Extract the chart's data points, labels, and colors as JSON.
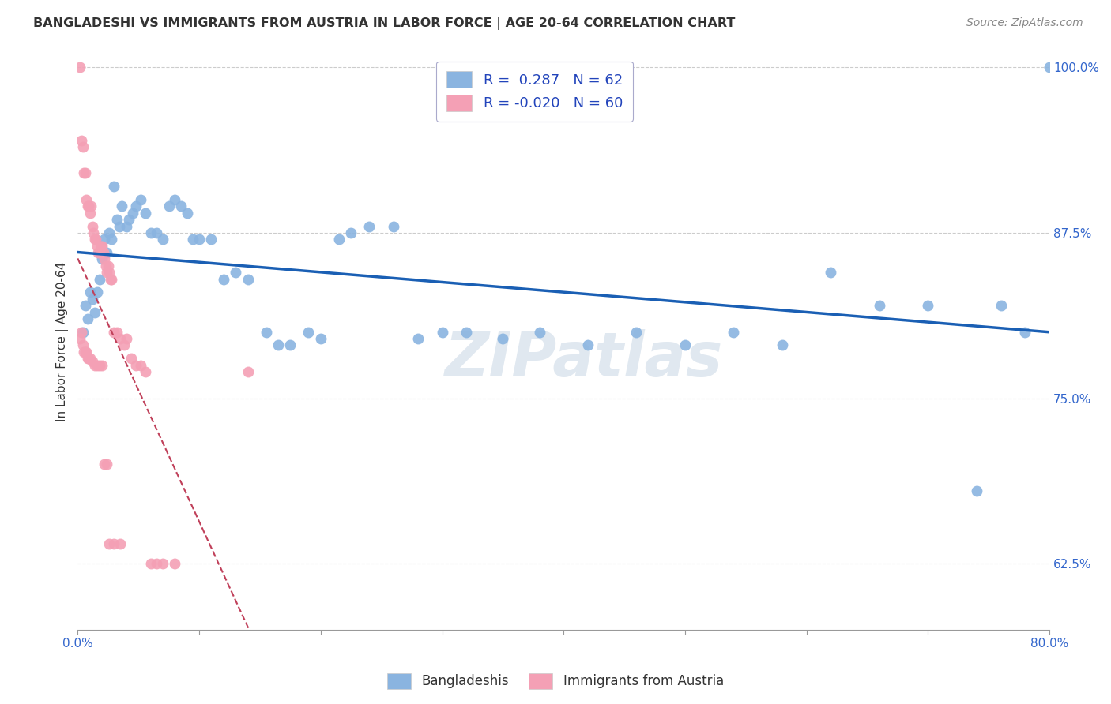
{
  "title": "BANGLADESHI VS IMMIGRANTS FROM AUSTRIA IN LABOR FORCE | AGE 20-64 CORRELATION CHART",
  "source": "Source: ZipAtlas.com",
  "ylabel": "In Labor Force | Age 20-64",
  "x_min": 0.0,
  "x_max": 0.8,
  "y_min": 0.575,
  "y_max": 1.01,
  "x_ticks": [
    0.0,
    0.1,
    0.2,
    0.3,
    0.4,
    0.5,
    0.6,
    0.7,
    0.8
  ],
  "x_ticklabels": [
    "0.0%",
    "",
    "",
    "",
    "",
    "",
    "",
    "",
    "80.0%"
  ],
  "y_ticks": [
    0.625,
    0.75,
    0.875,
    1.0
  ],
  "y_ticklabels": [
    "62.5%",
    "75.0%",
    "87.5%",
    "100.0%"
  ],
  "blue_R": 0.287,
  "blue_N": 62,
  "pink_R": -0.02,
  "pink_N": 60,
  "blue_color": "#8ab4e0",
  "pink_color": "#f4a0b5",
  "blue_line_color": "#1a5fb4",
  "pink_line_color": "#c0405a",
  "grid_color": "#cccccc",
  "legend_label_blue": "Bangladeshis",
  "legend_label_pink": "Immigrants from Austria",
  "watermark": "ZIPatlas",
  "blue_x": [
    0.004,
    0.006,
    0.008,
    0.01,
    0.012,
    0.014,
    0.016,
    0.018,
    0.02,
    0.022,
    0.024,
    0.026,
    0.028,
    0.03,
    0.032,
    0.034,
    0.036,
    0.04,
    0.042,
    0.045,
    0.048,
    0.052,
    0.056,
    0.06,
    0.065,
    0.07,
    0.075,
    0.08,
    0.085,
    0.09,
    0.095,
    0.1,
    0.11,
    0.12,
    0.13,
    0.14,
    0.155,
    0.165,
    0.175,
    0.19,
    0.2,
    0.215,
    0.225,
    0.24,
    0.26,
    0.28,
    0.3,
    0.32,
    0.35,
    0.38,
    0.42,
    0.46,
    0.5,
    0.54,
    0.58,
    0.62,
    0.66,
    0.7,
    0.74,
    0.76,
    0.78,
    0.8
  ],
  "blue_y": [
    0.8,
    0.82,
    0.81,
    0.83,
    0.825,
    0.815,
    0.83,
    0.84,
    0.855,
    0.87,
    0.86,
    0.875,
    0.87,
    0.91,
    0.885,
    0.88,
    0.895,
    0.88,
    0.885,
    0.89,
    0.895,
    0.9,
    0.89,
    0.875,
    0.875,
    0.87,
    0.895,
    0.9,
    0.895,
    0.89,
    0.87,
    0.87,
    0.87,
    0.84,
    0.845,
    0.84,
    0.8,
    0.79,
    0.79,
    0.8,
    0.795,
    0.87,
    0.875,
    0.88,
    0.88,
    0.795,
    0.8,
    0.8,
    0.795,
    0.8,
    0.79,
    0.8,
    0.79,
    0.8,
    0.79,
    0.845,
    0.82,
    0.82,
    0.68,
    0.82,
    0.8,
    1.0
  ],
  "pink_x": [
    0.002,
    0.003,
    0.004,
    0.005,
    0.006,
    0.007,
    0.008,
    0.009,
    0.01,
    0.011,
    0.012,
    0.013,
    0.014,
    0.015,
    0.016,
    0.017,
    0.018,
    0.019,
    0.02,
    0.021,
    0.022,
    0.023,
    0.024,
    0.025,
    0.026,
    0.027,
    0.028,
    0.03,
    0.032,
    0.035,
    0.038,
    0.04,
    0.044,
    0.048,
    0.052,
    0.056,
    0.06,
    0.065,
    0.07,
    0.08,
    0.002,
    0.003,
    0.004,
    0.005,
    0.006,
    0.007,
    0.008,
    0.009,
    0.01,
    0.012,
    0.014,
    0.016,
    0.018,
    0.02,
    0.022,
    0.024,
    0.026,
    0.03,
    0.035,
    0.14
  ],
  "pink_y": [
    1.0,
    0.945,
    0.94,
    0.92,
    0.92,
    0.9,
    0.895,
    0.895,
    0.89,
    0.895,
    0.88,
    0.875,
    0.87,
    0.87,
    0.865,
    0.86,
    0.86,
    0.865,
    0.865,
    0.86,
    0.855,
    0.85,
    0.845,
    0.85,
    0.845,
    0.84,
    0.84,
    0.8,
    0.8,
    0.795,
    0.79,
    0.795,
    0.78,
    0.775,
    0.775,
    0.77,
    0.625,
    0.625,
    0.625,
    0.625,
    0.795,
    0.8,
    0.79,
    0.785,
    0.785,
    0.785,
    0.78,
    0.78,
    0.78,
    0.778,
    0.775,
    0.775,
    0.775,
    0.775,
    0.7,
    0.7,
    0.64,
    0.64,
    0.64,
    0.77
  ]
}
